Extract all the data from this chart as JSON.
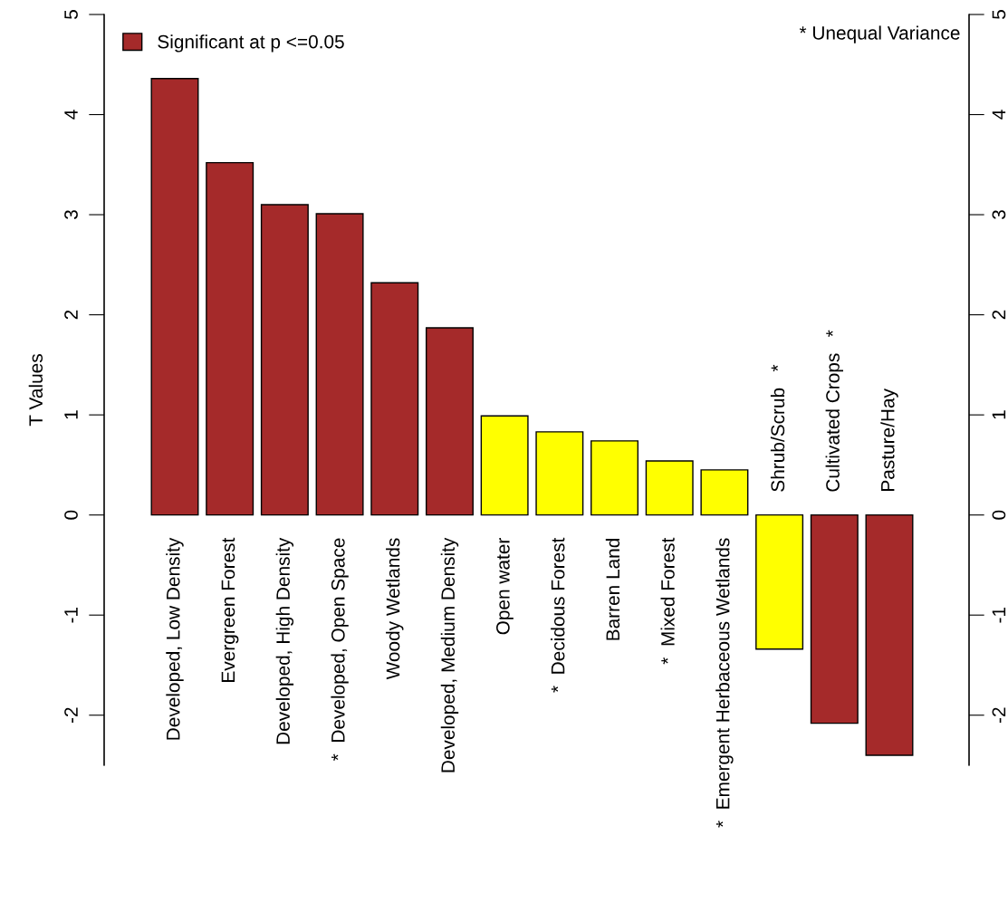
{
  "chart_data": {
    "type": "bar",
    "categories": [
      "Developed, Low Density",
      "Evergreen Forest",
      "Developed, High Density",
      "*  Developed, Open Space",
      "Woody Wetlands",
      "Developed, Medium Density",
      "Open water",
      "*  Decidous Forest",
      "Barren Land",
      "*  Mixed Forest",
      "*  Emergent Herbaceous Wetlands",
      "Shrub/Scrub   *",
      "Cultivated Crops   *",
      "Pasture/Hay"
    ],
    "series": [
      {
        "name": "Significant at p <=0.05",
        "color": "#a52a2a",
        "values": [
          4.36,
          3.52,
          3.1,
          3.01,
          2.32,
          1.87,
          null,
          null,
          null,
          null,
          null,
          null,
          -2.08,
          -2.4
        ]
      },
      {
        "color": "#ffff00",
        "values": [
          null,
          null,
          null,
          null,
          null,
          null,
          0.99,
          0.83,
          0.74,
          0.54,
          0.45,
          -1.34,
          null,
          null
        ]
      }
    ],
    "ylabel": "T Values",
    "ylim": [
      -2.5,
      5
    ],
    "yticks": [
      -2,
      -1,
      0,
      1,
      2,
      3,
      4,
      5
    ],
    "y2lim": [
      -2.5,
      5
    ],
    "y2ticks": [
      -2,
      -1,
      0,
      1,
      2,
      3,
      4,
      5
    ],
    "annotations": [
      "* Unequal Variance"
    ],
    "legend": "top left",
    "grid": false
  }
}
